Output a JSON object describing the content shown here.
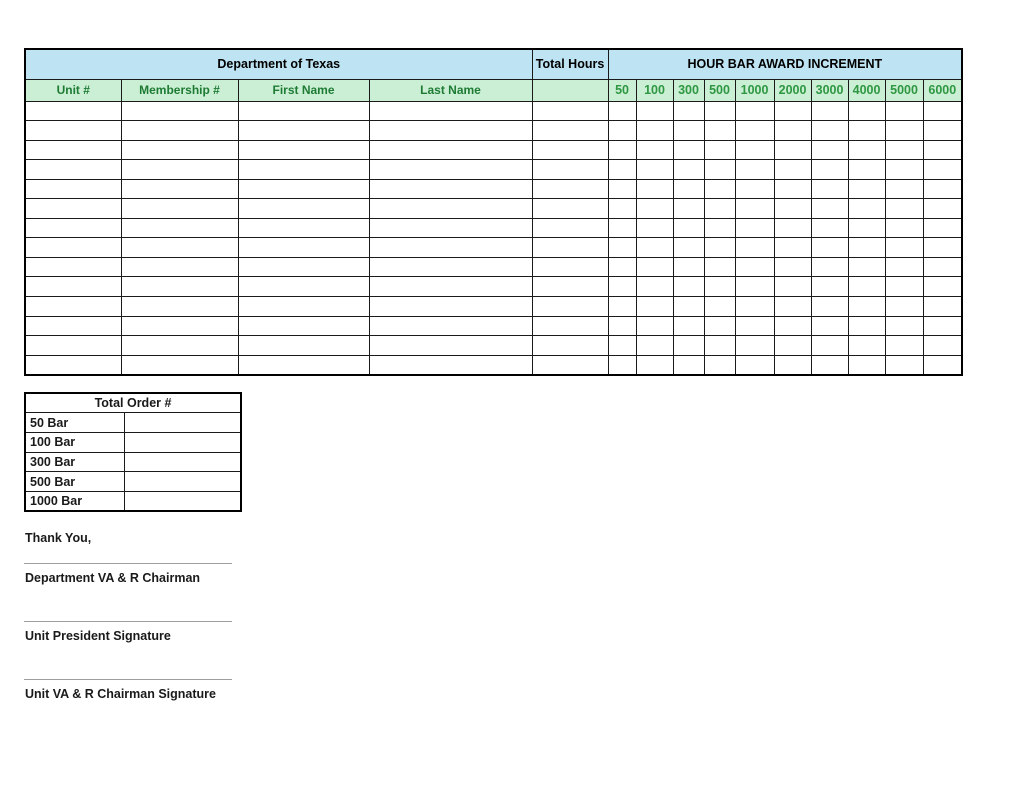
{
  "colors": {
    "blue_bg": "#BEE3F2",
    "green_bg": "#CBEFD4",
    "label_green": "#1E7B34",
    "number_green": "#2E9742",
    "line_gray": "#9e9e9e"
  },
  "main_table": {
    "department_title": "Department of Texas",
    "total_hours_label": "Total Hours",
    "award_title": "HOUR BAR AWARD INCREMENT",
    "columns": {
      "unit": "Unit #",
      "membership": "Membership #",
      "first_name": "First Name",
      "last_name": "Last Name"
    },
    "increments": [
      "50",
      "100",
      "300",
      "500",
      "1000",
      "2000",
      "3000",
      "4000",
      "5000",
      "6000"
    ],
    "body_row_count": 14
  },
  "order_table": {
    "title": "Total Order #",
    "rows": [
      "50 Bar",
      "100 Bar",
      "300 Bar",
      "500 Bar",
      "1000 Bar"
    ]
  },
  "closing_text": "Thank You,",
  "signatures": [
    "Department VA & R Chairman",
    "Unit President Signature",
    "Unit VA & R Chairman Signature"
  ]
}
